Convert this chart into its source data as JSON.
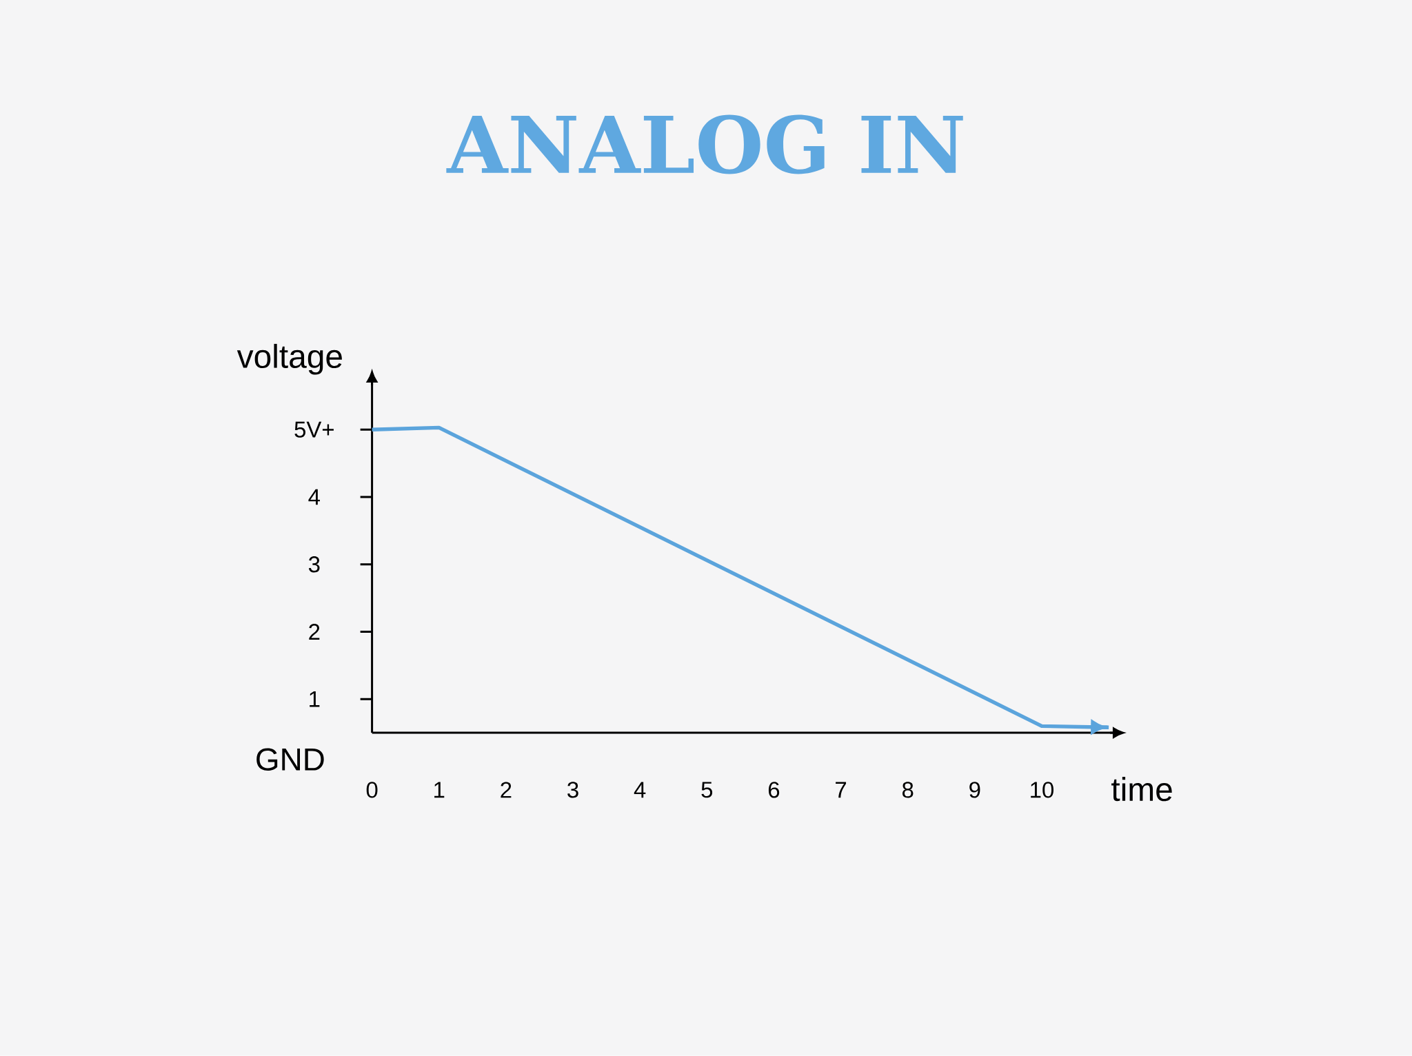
{
  "chart_data": {
    "type": "line",
    "title": "ANALOG IN",
    "xlabel": "time",
    "ylabel": "voltage",
    "x": [
      0,
      1,
      10,
      11
    ],
    "series": [
      {
        "color": "#5ba4dc",
        "values": [
          5.0,
          5.03,
          0.6,
          0.58
        ]
      }
    ],
    "xlim": [
      0,
      11.06
    ],
    "ylim": [
      0.5,
      5.7
    ],
    "xticks": [
      0,
      1,
      2,
      3,
      4,
      5,
      6,
      7,
      8,
      9,
      10
    ],
    "yticks": [
      1,
      2,
      3,
      4,
      {
        "value": 5,
        "label": "5V+"
      }
    ],
    "annotations": [
      "GND"
    ],
    "marker": "none",
    "line_style": "solid"
  }
}
